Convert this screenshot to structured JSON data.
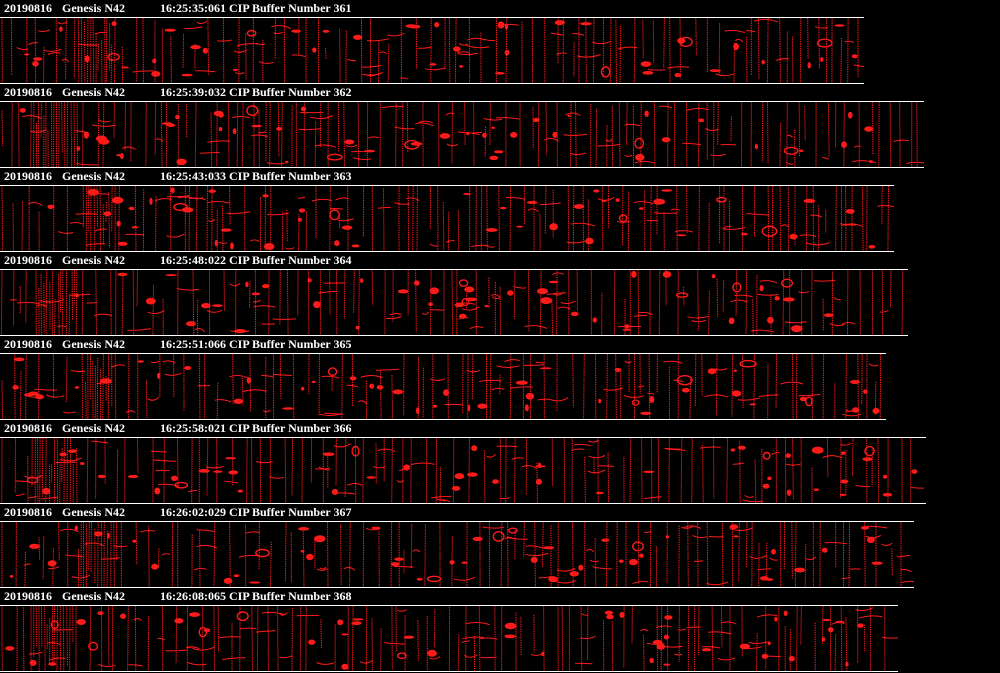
{
  "viewer": {
    "colors": {
      "background": "#000000",
      "text": "#ffffff",
      "particles": "#ff1a1a",
      "frame_lines": "#ffffff"
    },
    "buffers": [
      {
        "date": "20190816",
        "probe": "Genesis N42",
        "time_label": "16:25:35:061 CIP Buffer Number 361"
      },
      {
        "date": "20190816",
        "probe": "Genesis N42",
        "time_label": "16:25:39:032 CIP Buffer Number 362"
      },
      {
        "date": "20190816",
        "probe": "Genesis N42",
        "time_label": "16:25:43:033 CIP Buffer Number 363"
      },
      {
        "date": "20190816",
        "probe": "Genesis N42",
        "time_label": "16:25:48:022 CIP Buffer Number 364"
      },
      {
        "date": "20190816",
        "probe": "Genesis N42",
        "time_label": "16:25:51:066 CIP Buffer Number 365"
      },
      {
        "date": "20190816",
        "probe": "Genesis N42",
        "time_label": "16:25:58:021 CIP Buffer Number 366"
      },
      {
        "date": "20190816",
        "probe": "Genesis N42",
        "time_label": "16:26:02:029 CIP Buffer Number 367"
      },
      {
        "date": "20190816",
        "probe": "Genesis N42",
        "time_label": "16:26:08:065 CIP Buffer Number 368"
      }
    ]
  }
}
